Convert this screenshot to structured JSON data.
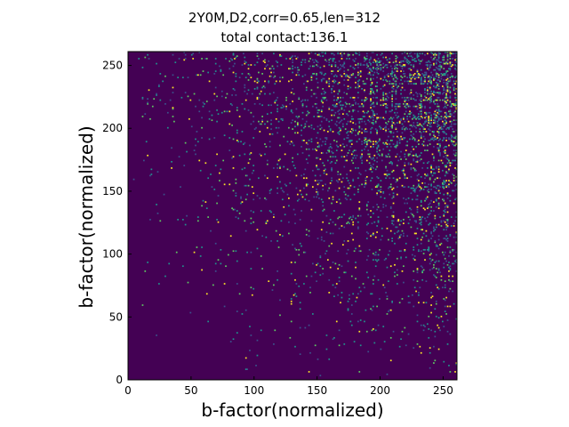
{
  "chart_data": {
    "type": "heatmap",
    "title": "2Y0M,D2,corr=0.65,len=312",
    "subtitle": "total contact:136.1",
    "xlabel": "b-factor(normalized)",
    "ylabel": "b-factor(normalized)",
    "xlim": [
      0,
      261
    ],
    "ylim": [
      0,
      261
    ],
    "xticks": [
      "0",
      "50",
      "100",
      "150",
      "200",
      "250"
    ],
    "yticks": [
      "0",
      "50",
      "100",
      "150",
      "200",
      "250"
    ],
    "grid": false,
    "colormap": [
      "#440154",
      "#3b528b",
      "#21918c",
      "#5ec962",
      "#fde725"
    ],
    "background_color": "#440154",
    "grid_size": 261,
    "density_gradient": "contact density increases toward the upper-right corner (high x and high y)"
  }
}
